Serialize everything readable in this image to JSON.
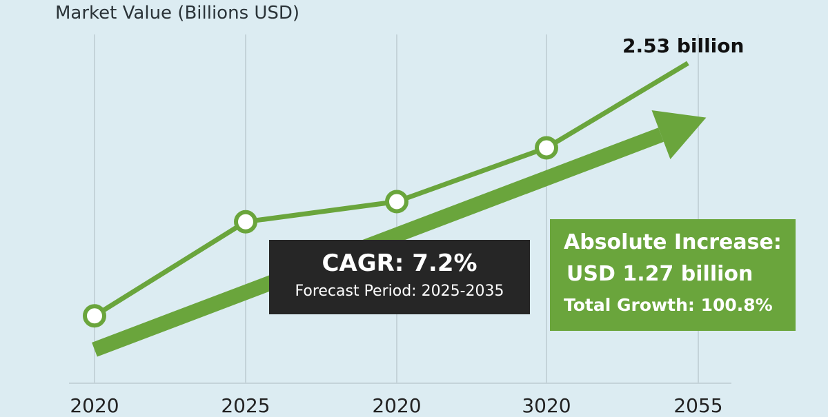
{
  "chart_data": {
    "type": "line",
    "title": "",
    "ylabel": "Market Value (Billions USD)",
    "xlabel": "",
    "x_tick_labels": [
      "2020",
      "2025",
      "2020",
      "3020",
      "2055"
    ],
    "ylim": [
      0,
      2.8
    ],
    "series": [
      {
        "name": "Market Value",
        "x_index": [
          0,
          1,
          2,
          3,
          4
        ],
        "values": [
          0.65,
          1.35,
          1.5,
          1.9,
          2.53
        ]
      }
    ],
    "end_label": "2.53 billion",
    "trend_arrow": {
      "start_value": 0.45,
      "end_value": 2.1
    },
    "annotations": {
      "cagr": "CAGR: 7.2%",
      "forecast": "Forecast Period: 2025-2035",
      "absolute_title": "Absolute Increase:",
      "absolute_value": "USD 1.27 billion",
      "total_growth": "Total Growth: 100.8%"
    },
    "colors": {
      "line": "#6aa53c",
      "arrow": "#6aa53c",
      "grid": "#c4d3d9",
      "marker_fill": "#ffffff",
      "background": "#dcecf2"
    }
  }
}
